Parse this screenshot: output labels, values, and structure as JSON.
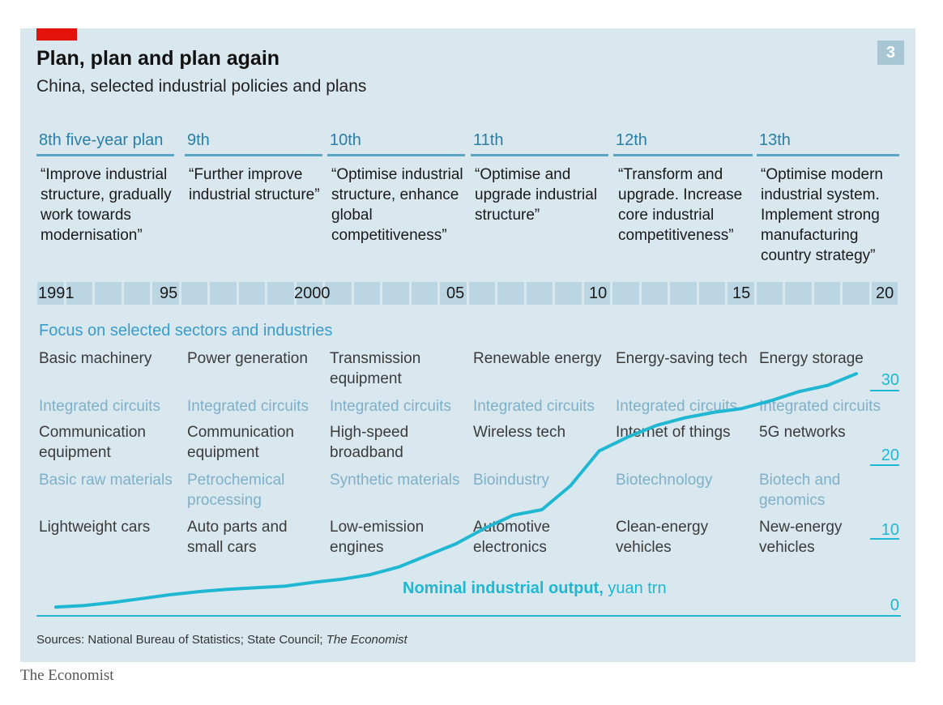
{
  "title": "Plan, plan and plan again",
  "subtitle": "China, selected industrial policies and plans",
  "badge": "3",
  "plans": [
    {
      "label": "8th five-year plan",
      "quote": "“Improve industrial structure, gradually work towards modernisation”"
    },
    {
      "label": "9th",
      "quote": "“Further improve industrial structure”"
    },
    {
      "label": "10th",
      "quote": "“Optimise industrial structure, enhance global competitiveness”"
    },
    {
      "label": "11th",
      "quote": "“Optimise and upgrade industrial structure”"
    },
    {
      "label": "12th",
      "quote": "“Transform and upgrade. Increase core industrial competitiveness”"
    },
    {
      "label": "13th",
      "quote": "“Optimise modern industrial system. Implement strong manufacturing country strategy”"
    }
  ],
  "year_labels": [
    "1991",
    "95",
    "2000",
    "05",
    "10",
    "15",
    "20"
  ],
  "focus_heading": "Focus on selected sectors and industries",
  "sectors": [
    [
      "Basic machinery",
      "Power generation",
      "Transmission equipment",
      "Renewable energy",
      "Energy-saving tech",
      "Energy storage"
    ],
    [
      "Integrated circuits",
      "Integrated circuits",
      "Integrated circuits",
      "Integrated circuits",
      "Integrated circuits",
      "Integrated circuits"
    ],
    [
      "Communication equipment",
      "Communication equipment",
      "High-speed broadband",
      "Wireless tech",
      "Internet of things",
      "5G networks"
    ],
    [
      "Basic raw materials",
      "Petrochemical processing",
      "Synthetic materials",
      "Bioindustry",
      "Biotechnology",
      "Biotech and genomics"
    ],
    [
      "Lightweight cars",
      "Auto parts and small cars",
      "Low-emission engines",
      "Automotive electronics",
      "Clean-energy vehicles",
      "New-energy vehicles"
    ]
  ],
  "chart_data": {
    "type": "line",
    "series": [
      {
        "name": "Nominal industrial output, yuan trn",
        "x": [
          1991,
          1992,
          1993,
          1994,
          1995,
          1996,
          1997,
          1998,
          1999,
          2000,
          2001,
          2002,
          2003,
          2004,
          2005,
          2006,
          2007,
          2008,
          2009,
          2010,
          2011,
          2012,
          2013,
          2014,
          2015,
          2016,
          2017,
          2018,
          2019
        ],
        "values": [
          0.3,
          0.5,
          0.9,
          1.4,
          1.9,
          2.3,
          2.6,
          2.8,
          3.0,
          3.5,
          3.9,
          4.5,
          5.5,
          7.0,
          8.5,
          10.5,
          12.2,
          12.9,
          16.0,
          20.5,
          22.3,
          23.8,
          24.8,
          25.5,
          26.0,
          27.0,
          28.2,
          29.0,
          30.5
        ]
      }
    ],
    "annotation": {
      "label": "Nominal industrial output,",
      "unit": "yuan trn"
    },
    "y_ticks": [
      "0",
      "10",
      "20",
      "30"
    ],
    "ylim": [
      0,
      32
    ],
    "xlim": [
      1991,
      2020
    ]
  },
  "source_prefix": "Sources: National Bureau of Statistics; State Council; ",
  "source_italic": "The Economist",
  "brand": "The Economist",
  "colors": {
    "panel": "#d9e7ef",
    "accent_red": "#e3120b",
    "line": "#1fb7d1",
    "heading_blue": "#2a7fa8"
  }
}
